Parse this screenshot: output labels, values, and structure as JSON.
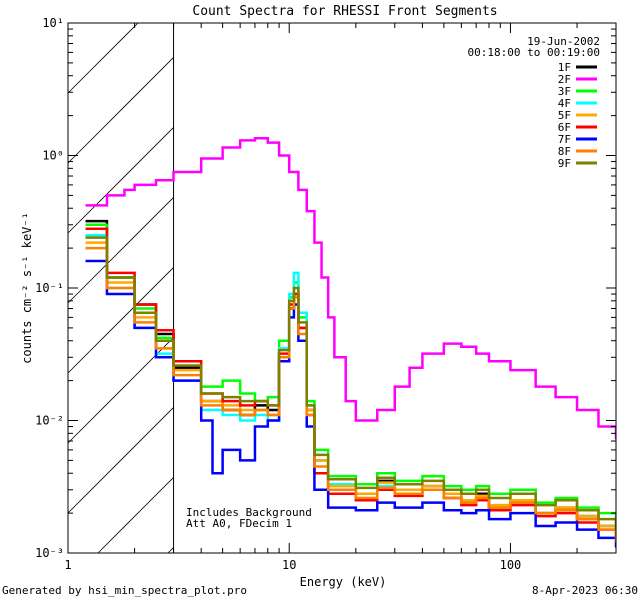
{
  "chart_data": {
    "type": "line",
    "title": "Count Spectra for RHESSI Front Segments",
    "xlabel": "Energy (keV)",
    "ylabel": "counts cm⁻² s⁻¹ keV⁻¹",
    "xscale": "log",
    "yscale": "log",
    "xlim": [
      1.0,
      300.0
    ],
    "ylim": [
      0.001,
      10.0
    ],
    "x_ticks": [
      {
        "value": 1,
        "label": "1"
      },
      {
        "value": 10,
        "label": "10"
      },
      {
        "value": 100,
        "label": "100"
      }
    ],
    "y_ticks": [
      {
        "value": 0.001,
        "label": "10⁻³"
      },
      {
        "value": 0.01,
        "label": "10⁻²"
      },
      {
        "value": 0.1,
        "label": "10⁻¹"
      },
      {
        "value": 1,
        "label": "10⁰"
      },
      {
        "value": 10,
        "label": "10¹"
      }
    ],
    "hatched_region": [
      1.0,
      3.0
    ],
    "date": "19-Jun-2002",
    "time_range": "00:18:00 to 00:19:00",
    "annotations": [
      "Includes Background",
      "Att A0, FDecim 1"
    ],
    "series": [
      {
        "name": "1F",
        "color": "#000000",
        "points": [
          [
            1.2,
            0.32
          ],
          [
            1.5,
            0.12
          ],
          [
            2,
            0.075
          ],
          [
            2.5,
            0.045
          ],
          [
            3,
            0.025
          ],
          [
            4,
            0.014
          ],
          [
            5,
            0.012
          ],
          [
            6,
            0.011
          ],
          [
            7,
            0.013
          ],
          [
            8,
            0.012
          ],
          [
            9,
            0.03
          ],
          [
            10,
            0.07
          ],
          [
            10.5,
            0.09
          ],
          [
            11,
            0.05
          ],
          [
            12,
            0.012
          ],
          [
            13,
            0.005
          ],
          [
            15,
            0.003
          ],
          [
            20,
            0.0028
          ],
          [
            25,
            0.0035
          ],
          [
            30,
            0.003
          ],
          [
            40,
            0.0032
          ],
          [
            50,
            0.003
          ],
          [
            60,
            0.0025
          ],
          [
            70,
            0.0028
          ],
          [
            80,
            0.0022
          ],
          [
            100,
            0.0025
          ],
          [
            130,
            0.002
          ],
          [
            160,
            0.0022
          ],
          [
            200,
            0.0019
          ],
          [
            250,
            0.0016
          ],
          [
            300,
            0.0014
          ]
        ]
      },
      {
        "name": "2F",
        "color": "#ff00ff",
        "points": [
          [
            1.2,
            0.42
          ],
          [
            1.5,
            0.5
          ],
          [
            1.8,
            0.55
          ],
          [
            2,
            0.6
          ],
          [
            2.5,
            0.65
          ],
          [
            3,
            0.75
          ],
          [
            4,
            0.95
          ],
          [
            5,
            1.15
          ],
          [
            6,
            1.3
          ],
          [
            7,
            1.35
          ],
          [
            8,
            1.25
          ],
          [
            9,
            1.0
          ],
          [
            10,
            0.75
          ],
          [
            11,
            0.55
          ],
          [
            12,
            0.38
          ],
          [
            13,
            0.22
          ],
          [
            14,
            0.12
          ],
          [
            15,
            0.06
          ],
          [
            16,
            0.03
          ],
          [
            18,
            0.014
          ],
          [
            20,
            0.01
          ],
          [
            25,
            0.012
          ],
          [
            30,
            0.018
          ],
          [
            35,
            0.025
          ],
          [
            40,
            0.032
          ],
          [
            50,
            0.038
          ],
          [
            60,
            0.036
          ],
          [
            70,
            0.032
          ],
          [
            80,
            0.028
          ],
          [
            100,
            0.024
          ],
          [
            130,
            0.018
          ],
          [
            160,
            0.015
          ],
          [
            200,
            0.012
          ],
          [
            250,
            0.009
          ],
          [
            300,
            0.0072
          ]
        ]
      },
      {
        "name": "3F",
        "color": "#00ff00",
        "points": [
          [
            1.2,
            0.3
          ],
          [
            1.5,
            0.12
          ],
          [
            2,
            0.07
          ],
          [
            2.5,
            0.042
          ],
          [
            3,
            0.028
          ],
          [
            4,
            0.018
          ],
          [
            5,
            0.02
          ],
          [
            6,
            0.016
          ],
          [
            7,
            0.014
          ],
          [
            8,
            0.015
          ],
          [
            9,
            0.04
          ],
          [
            10,
            0.085
          ],
          [
            10.5,
            0.11
          ],
          [
            11,
            0.06
          ],
          [
            12,
            0.014
          ],
          [
            13,
            0.006
          ],
          [
            15,
            0.0038
          ],
          [
            20,
            0.0033
          ],
          [
            25,
            0.004
          ],
          [
            30,
            0.0035
          ],
          [
            40,
            0.0038
          ],
          [
            50,
            0.0032
          ],
          [
            60,
            0.003
          ],
          [
            70,
            0.0032
          ],
          [
            80,
            0.0028
          ],
          [
            100,
            0.003
          ],
          [
            130,
            0.0024
          ],
          [
            160,
            0.0026
          ],
          [
            200,
            0.0022
          ],
          [
            250,
            0.002
          ],
          [
            300,
            0.0016
          ]
        ]
      },
      {
        "name": "4F",
        "color": "#00ffff",
        "points": [
          [
            1.2,
            0.25
          ],
          [
            1.5,
            0.1
          ],
          [
            2,
            0.05
          ],
          [
            2.5,
            0.032
          ],
          [
            3,
            0.02
          ],
          [
            4,
            0.012
          ],
          [
            5,
            0.011
          ],
          [
            6,
            0.01
          ],
          [
            7,
            0.011
          ],
          [
            8,
            0.01
          ],
          [
            9,
            0.035
          ],
          [
            10,
            0.09
          ],
          [
            10.5,
            0.13
          ],
          [
            11,
            0.065
          ],
          [
            12,
            0.013
          ],
          [
            13,
            0.005
          ],
          [
            15,
            0.0033
          ],
          [
            20,
            0.0028
          ],
          [
            25,
            0.0032
          ],
          [
            30,
            0.0028
          ],
          [
            40,
            0.003
          ],
          [
            50,
            0.0026
          ],
          [
            60,
            0.0024
          ],
          [
            70,
            0.0026
          ],
          [
            80,
            0.0022
          ],
          [
            100,
            0.0024
          ],
          [
            130,
            0.002
          ],
          [
            160,
            0.0021
          ],
          [
            200,
            0.0018
          ],
          [
            250,
            0.0016
          ],
          [
            300,
            0.0013
          ]
        ]
      },
      {
        "name": "5F",
        "color": "#ffaa00",
        "points": [
          [
            1.2,
            0.22
          ],
          [
            1.5,
            0.11
          ],
          [
            2,
            0.06
          ],
          [
            2.5,
            0.04
          ],
          [
            3,
            0.024
          ],
          [
            4,
            0.014
          ],
          [
            5,
            0.013
          ],
          [
            6,
            0.012
          ],
          [
            7,
            0.012
          ],
          [
            8,
            0.011
          ],
          [
            9,
            0.03
          ],
          [
            10,
            0.075
          ],
          [
            10.5,
            0.09
          ],
          [
            11,
            0.05
          ],
          [
            12,
            0.012
          ],
          [
            13,
            0.005
          ],
          [
            15,
            0.0032
          ],
          [
            20,
            0.0028
          ],
          [
            25,
            0.0034
          ],
          [
            30,
            0.003
          ],
          [
            40,
            0.0032
          ],
          [
            50,
            0.0028
          ],
          [
            60,
            0.0025
          ],
          [
            70,
            0.0027
          ],
          [
            80,
            0.0023
          ],
          [
            100,
            0.0025
          ],
          [
            130,
            0.002
          ],
          [
            160,
            0.0022
          ],
          [
            200,
            0.0019
          ],
          [
            250,
            0.0016
          ],
          [
            300,
            0.0013
          ]
        ]
      },
      {
        "name": "6F",
        "color": "#ff0000",
        "points": [
          [
            1.2,
            0.28
          ],
          [
            1.5,
            0.13
          ],
          [
            2,
            0.075
          ],
          [
            2.5,
            0.048
          ],
          [
            3,
            0.028
          ],
          [
            4,
            0.016
          ],
          [
            5,
            0.014
          ],
          [
            6,
            0.013
          ],
          [
            7,
            0.014
          ],
          [
            8,
            0.013
          ],
          [
            9,
            0.032
          ],
          [
            10,
            0.075
          ],
          [
            10.5,
            0.09
          ],
          [
            11,
            0.05
          ],
          [
            12,
            0.011
          ],
          [
            13,
            0.004
          ],
          [
            15,
            0.0028
          ],
          [
            20,
            0.0025
          ],
          [
            25,
            0.003
          ],
          [
            30,
            0.0027
          ],
          [
            40,
            0.003
          ],
          [
            50,
            0.0026
          ],
          [
            60,
            0.0023
          ],
          [
            70,
            0.0025
          ],
          [
            80,
            0.0021
          ],
          [
            100,
            0.0023
          ],
          [
            130,
            0.0019
          ],
          [
            160,
            0.002
          ],
          [
            200,
            0.0017
          ],
          [
            250,
            0.0015
          ],
          [
            300,
            0.0012
          ]
        ]
      },
      {
        "name": "7F",
        "color": "#0000ff",
        "points": [
          [
            1.2,
            0.16
          ],
          [
            1.5,
            0.09
          ],
          [
            2,
            0.05
          ],
          [
            2.5,
            0.03
          ],
          [
            3,
            0.02
          ],
          [
            4,
            0.01
          ],
          [
            4.5,
            0.004
          ],
          [
            5,
            0.006
          ],
          [
            6,
            0.005
          ],
          [
            7,
            0.009
          ],
          [
            8,
            0.01
          ],
          [
            9,
            0.028
          ],
          [
            10,
            0.06
          ],
          [
            10.5,
            0.075
          ],
          [
            11,
            0.04
          ],
          [
            12,
            0.009
          ],
          [
            13,
            0.003
          ],
          [
            15,
            0.0022
          ],
          [
            20,
            0.0021
          ],
          [
            25,
            0.0024
          ],
          [
            30,
            0.0022
          ],
          [
            40,
            0.0024
          ],
          [
            50,
            0.0021
          ],
          [
            60,
            0.002
          ],
          [
            70,
            0.0021
          ],
          [
            80,
            0.0018
          ],
          [
            100,
            0.002
          ],
          [
            130,
            0.0016
          ],
          [
            160,
            0.0017
          ],
          [
            200,
            0.0015
          ],
          [
            250,
            0.0013
          ],
          [
            300,
            0.0011
          ]
        ]
      },
      {
        "name": "8F",
        "color": "#ff8000",
        "points": [
          [
            1.2,
            0.2
          ],
          [
            1.5,
            0.1
          ],
          [
            2,
            0.055
          ],
          [
            2.5,
            0.035
          ],
          [
            3,
            0.022
          ],
          [
            4,
            0.013
          ],
          [
            5,
            0.012
          ],
          [
            6,
            0.011
          ],
          [
            7,
            0.012
          ],
          [
            8,
            0.011
          ],
          [
            9,
            0.03
          ],
          [
            10,
            0.07
          ],
          [
            10.5,
            0.085
          ],
          [
            11,
            0.045
          ],
          [
            12,
            0.011
          ],
          [
            13,
            0.0045
          ],
          [
            15,
            0.003
          ],
          [
            20,
            0.0026
          ],
          [
            25,
            0.0031
          ],
          [
            30,
            0.0028
          ],
          [
            40,
            0.003
          ],
          [
            50,
            0.0026
          ],
          [
            60,
            0.0024
          ],
          [
            70,
            0.0026
          ],
          [
            80,
            0.0022
          ],
          [
            100,
            0.0024
          ],
          [
            130,
            0.002
          ],
          [
            160,
            0.0021
          ],
          [
            200,
            0.0018
          ],
          [
            250,
            0.0015
          ],
          [
            300,
            0.0012
          ]
        ]
      },
      {
        "name": "9F",
        "color": "#808000",
        "points": [
          [
            1.2,
            0.24
          ],
          [
            1.5,
            0.12
          ],
          [
            2,
            0.065
          ],
          [
            2.5,
            0.04
          ],
          [
            3,
            0.026
          ],
          [
            4,
            0.016
          ],
          [
            5,
            0.015
          ],
          [
            6,
            0.014
          ],
          [
            7,
            0.014
          ],
          [
            8,
            0.013
          ],
          [
            9,
            0.034
          ],
          [
            10,
            0.08
          ],
          [
            10.5,
            0.1
          ],
          [
            11,
            0.055
          ],
          [
            12,
            0.013
          ],
          [
            13,
            0.0055
          ],
          [
            15,
            0.0036
          ],
          [
            20,
            0.0031
          ],
          [
            25,
            0.0037
          ],
          [
            30,
            0.0033
          ],
          [
            40,
            0.0035
          ],
          [
            50,
            0.003
          ],
          [
            60,
            0.0028
          ],
          [
            70,
            0.003
          ],
          [
            80,
            0.0026
          ],
          [
            100,
            0.0028
          ],
          [
            130,
            0.0023
          ],
          [
            160,
            0.0025
          ],
          [
            200,
            0.0021
          ],
          [
            250,
            0.0018
          ],
          [
            300,
            0.0015
          ]
        ]
      }
    ]
  },
  "footer": {
    "generated_by": "Generated by hsi_min_spectra_plot.pro",
    "timestamp": "8-Apr-2023 06:30"
  }
}
